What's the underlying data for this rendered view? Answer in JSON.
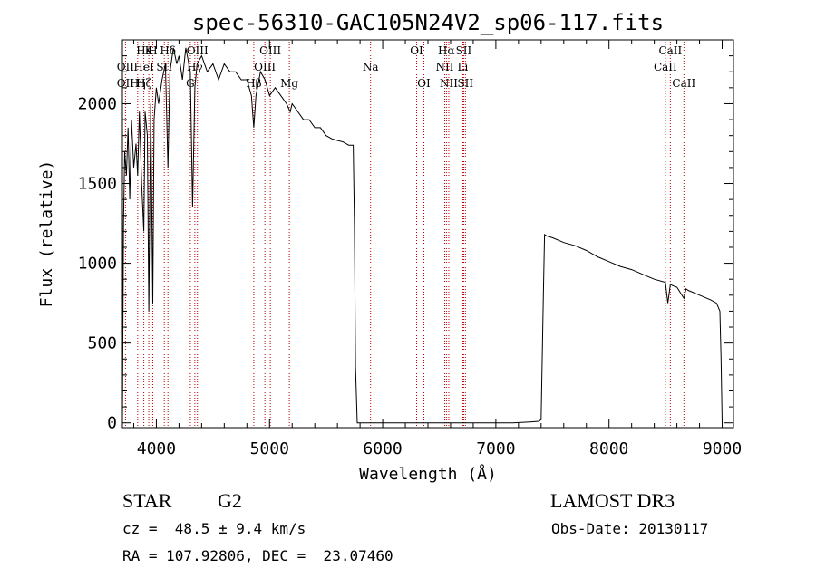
{
  "chart_data": {
    "type": "line",
    "title": "spec-56310-GAC105N24V2_sp06-117.fits",
    "xlabel": "Wavelength (Å)",
    "ylabel": "Flux (relative)",
    "xlim": [
      3700,
      9100
    ],
    "ylim": [
      -30,
      2400
    ],
    "xticks": [
      4000,
      5000,
      6000,
      7000,
      8000,
      9000
    ],
    "yticks": [
      0,
      500,
      1000,
      1500,
      2000
    ],
    "xtick_labels": [
      "4000",
      "5000",
      "6000",
      "7000",
      "8000",
      "9000"
    ],
    "ytick_labels": [
      "0",
      "500",
      "1000",
      "1500",
      "2000"
    ],
    "series": [
      {
        "name": "spectrum",
        "x": [
          3700,
          3710,
          3720,
          3735,
          3750,
          3765,
          3780,
          3800,
          3820,
          3835,
          3850,
          3870,
          3889,
          3900,
          3920,
          3933,
          3950,
          3968,
          3980,
          4000,
          4020,
          4050,
          4080,
          4102,
          4120,
          4150,
          4180,
          4200,
          4230,
          4260,
          4300,
          4320,
          4340,
          4360,
          4400,
          4450,
          4500,
          4550,
          4600,
          4650,
          4700,
          4750,
          4800,
          4840,
          4861,
          4880,
          4920,
          4960,
          5000,
          5050,
          5100,
          5150,
          5183,
          5200,
          5250,
          5300,
          5350,
          5400,
          5450,
          5500,
          5550,
          5600,
          5650,
          5700,
          5740,
          5750,
          5760,
          5775,
          5780,
          5800,
          6000,
          6500,
          7000,
          7150,
          7300,
          7380,
          7400,
          7420,
          7430,
          7450,
          7500,
          7600,
          7700,
          7800,
          7900,
          8000,
          8100,
          8200,
          8300,
          8400,
          8498,
          8520,
          8542,
          8560,
          8600,
          8662,
          8680,
          8700,
          8800,
          8900,
          8950,
          8980,
          8990,
          9000
        ],
        "y": [
          0,
          1250,
          1700,
          1550,
          1850,
          1400,
          1900,
          1600,
          1750,
          1550,
          1950,
          1500,
          1200,
          1950,
          1800,
          700,
          2000,
          750,
          1900,
          2100,
          2000,
          2150,
          2250,
          1600,
          2200,
          2350,
          2250,
          2300,
          2150,
          2350,
          2200,
          1350,
          2100,
          2250,
          2300,
          2200,
          2250,
          2150,
          2250,
          2200,
          2200,
          2150,
          2150,
          2050,
          1850,
          2050,
          2200,
          2150,
          2050,
          2100,
          2050,
          2000,
          1950,
          2000,
          1950,
          1900,
          1900,
          1850,
          1850,
          1800,
          1780,
          1770,
          1760,
          1740,
          1740,
          1250,
          350,
          0,
          0,
          0,
          0,
          0,
          0,
          0,
          5,
          10,
          20,
          800,
          1180,
          1170,
          1160,
          1130,
          1110,
          1080,
          1040,
          1010,
          980,
          960,
          930,
          900,
          880,
          750,
          870,
          860,
          850,
          780,
          840,
          830,
          800,
          770,
          750,
          700,
          400,
          0
        ]
      }
    ],
    "line_markers": [
      {
        "label": "Hδ",
        "x": 4102,
        "row": 1
      },
      {
        "label": "K",
        "x": 3933,
        "row": 1
      },
      {
        "label": "H",
        "x": 3968,
        "row": 1
      },
      {
        "label": "Hε",
        "x": 3889,
        "row": 1
      },
      {
        "label": "OII",
        "x": 3727,
        "row": 2
      },
      {
        "label": "HeI",
        "x": 3889,
        "row": 2
      },
      {
        "label": "SII",
        "x": 4070,
        "row": 2
      },
      {
        "label": "OII",
        "x": 3727,
        "row": 3
      },
      {
        "label": "Hη",
        "x": 3835,
        "row": 3
      },
      {
        "label": "Hζ",
        "x": 3889,
        "row": 3
      },
      {
        "label": "OIII",
        "x": 4363,
        "row": 1
      },
      {
        "label": "Hγ",
        "x": 4340,
        "row": 2
      },
      {
        "label": "G",
        "x": 4300,
        "row": 3
      },
      {
        "label": "OIII",
        "x": 5007,
        "row": 1
      },
      {
        "label": "OIII",
        "x": 4959,
        "row": 2
      },
      {
        "label": "Hβ",
        "x": 4861,
        "row": 3
      },
      {
        "label": "Mg",
        "x": 5175,
        "row": 3
      },
      {
        "label": "Na",
        "x": 5893,
        "row": 2
      },
      {
        "label": "OI",
        "x": 6300,
        "row": 1
      },
      {
        "label": "OI",
        "x": 6364,
        "row": 3
      },
      {
        "label": "Hα",
        "x": 6563,
        "row": 1
      },
      {
        "label": "SII",
        "x": 6716,
        "row": 1
      },
      {
        "label": "NII",
        "x": 6548,
        "row": 2
      },
      {
        "label": "Li",
        "x": 6708,
        "row": 2
      },
      {
        "label": "NII",
        "x": 6584,
        "row": 3
      },
      {
        "label": "SII",
        "x": 6731,
        "row": 3
      },
      {
        "label": "CaII",
        "x": 8542,
        "row": 1
      },
      {
        "label": "CaII",
        "x": 8498,
        "row": 2
      },
      {
        "label": "CaII",
        "x": 8662,
        "row": 3
      }
    ],
    "grid": false,
    "line_color": "#000000",
    "marker_color": "#c00000"
  },
  "info": {
    "object_class": "STAR",
    "subclass": "G2",
    "survey": "LAMOST DR3",
    "redshift_line": "cz =  48.5 ± 9.4 km/s",
    "obs_date_line": "Obs-Date: 20130117",
    "coords_line": "RA = 107.92806, DEC =  23.07460"
  }
}
